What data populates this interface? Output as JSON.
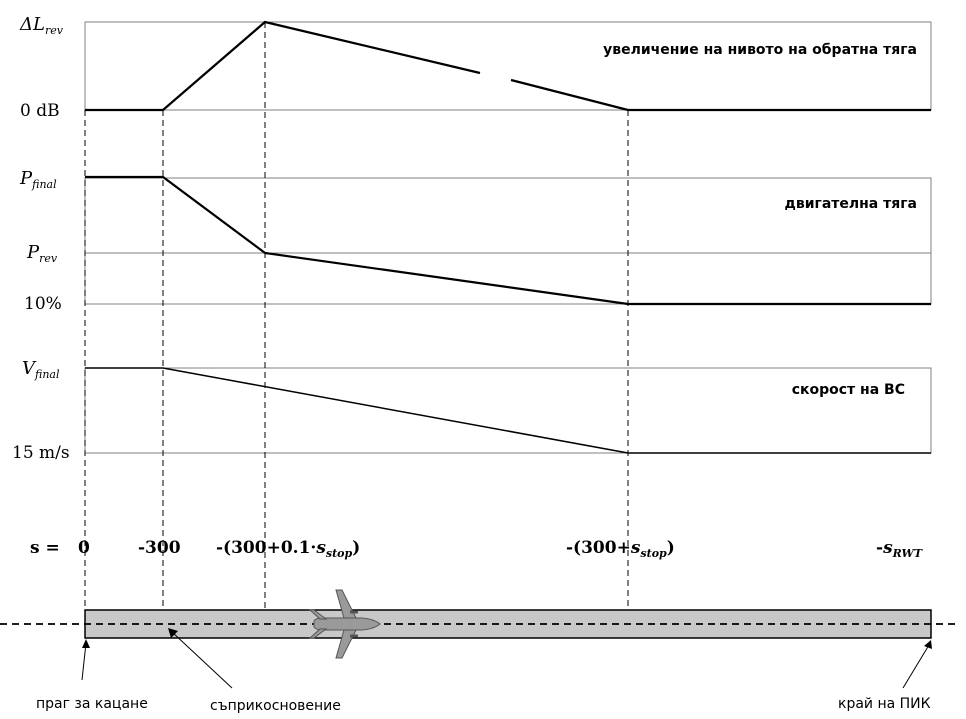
{
  "panels": {
    "reverse": {
      "y_top_label": "ΔL",
      "y_top_sub": "rev",
      "y_bottom_label": "0 dB",
      "title": "увеличение на нивото на обратна тяга"
    },
    "thrust": {
      "y_top_label": "P",
      "y_top_sub": "final",
      "y_mid_label": "P",
      "y_mid_sub": "rev",
      "y_bottom_label": "10%",
      "title": "двигателна тяга"
    },
    "speed": {
      "y_top_label": "V",
      "y_top_sub": "final",
      "y_bottom_label": "15 m/s",
      "title": "скорост на ВС"
    }
  },
  "axis": {
    "s_label": "s =",
    "t0": "0",
    "t1": "-300",
    "t2_pre": "-(300+0.1·",
    "t2_s": "s",
    "t2_sub": "stop",
    "t2_post": ")",
    "t3_pre": "-(300+",
    "t3_s": "s",
    "t3_sub": "stop",
    "t3_post": ")",
    "t4_pre": "-",
    "t4_s": "s",
    "t4_sub": "RWT"
  },
  "runway": {
    "threshold_label": "праг за кацане",
    "touchdown_label": "съприкосновение",
    "end_label": "край на ПИК"
  },
  "colors": {
    "line": "#000000",
    "grid": "#808080",
    "runway": "#c8c8c8",
    "aircraft": "#9a9a9a"
  }
}
